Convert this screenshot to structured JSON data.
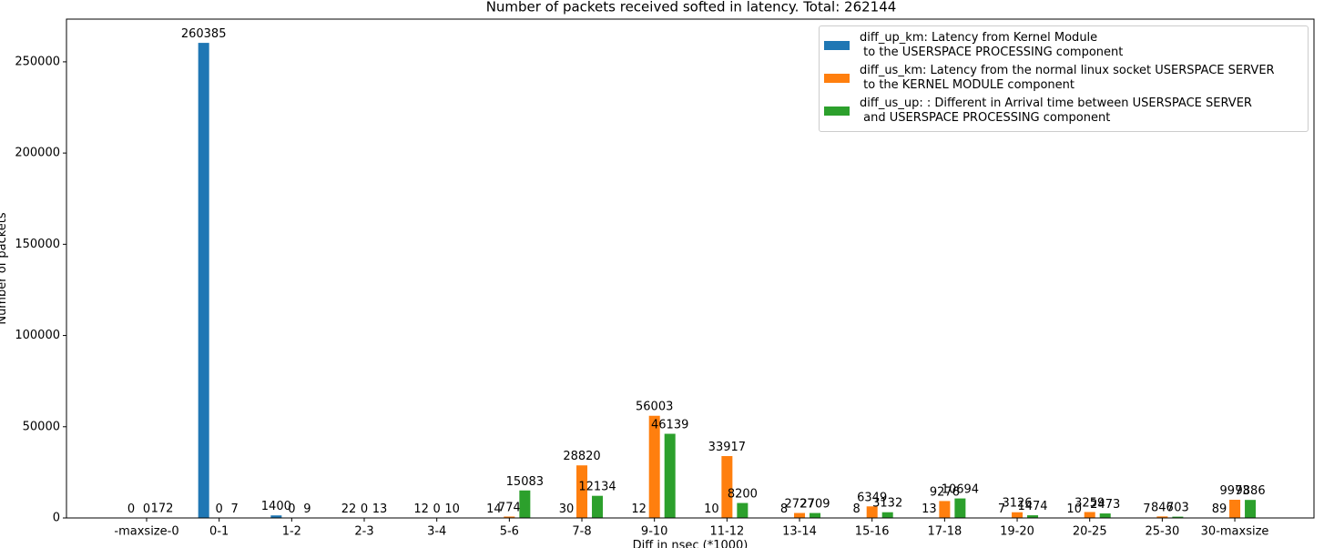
{
  "chart_data": {
    "type": "bar",
    "title": "Number of packets received softed in latency. Total: 262144",
    "x_label": "Diff in nsec (*1000)",
    "y_label": "Number of packets",
    "categories": [
      "-maxsize-0",
      "0-1",
      "1-2",
      "2-3",
      "3-4",
      "5-6",
      "7-8",
      "9-10",
      "11-12",
      "13-14",
      "15-16",
      "17-18",
      "19-20",
      "20-25",
      "25-30",
      "30-maxsize"
    ],
    "series": [
      {
        "name": "diff_up_km: Latency from Kernel Module\n to the USERSPACE PROCESSING component",
        "color": "#1f77b4",
        "values": [
          0,
          260385,
          1400,
          22,
          12,
          14,
          30,
          12,
          10,
          8,
          8,
          13,
          7,
          10,
          7,
          89
        ]
      },
      {
        "name": "diff_us_km: Latency from the normal linux socket USERSPACE SERVER\n to the KERNEL MODULE component",
        "color": "#ff7f0e",
        "values": [
          0,
          0,
          0,
          0,
          0,
          774,
          28820,
          56003,
          33917,
          2727,
          6349,
          9276,
          3126,
          3259,
          846,
          9973
        ]
      },
      {
        "name": "diff_us_up: : Different in Arrival time between USERSPACE SERVER\n and USERSPACE PROCESSING component",
        "color": "#2ca02c",
        "values": [
          172,
          7,
          9,
          13,
          10,
          15083,
          12134,
          46139,
          8200,
          2709,
          3132,
          10694,
          1474,
          2473,
          703,
          9886
        ]
      }
    ],
    "ylim": [
      0,
      273404
    ],
    "yticks": [
      0,
      50000,
      100000,
      150000,
      200000,
      250000
    ],
    "legend": "upper right"
  }
}
